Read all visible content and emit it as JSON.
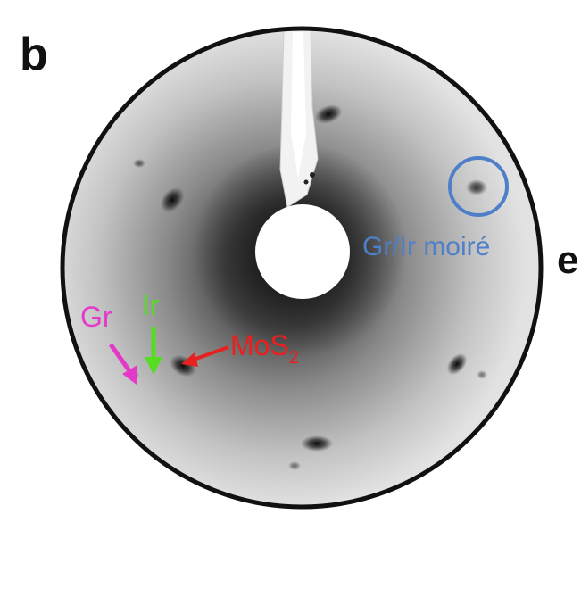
{
  "figure": {
    "panel_label": "b",
    "side_label": "e",
    "pattern": "LEED diffraction pattern",
    "annotations": {
      "moire": {
        "text": "Gr/Ir moiré",
        "color": "#4f7fc9"
      },
      "mos2": {
        "text_main": "MoS",
        "text_sub": "2",
        "color": "#e8201f"
      },
      "ir": {
        "text": "Ir",
        "color": "#55dd22"
      },
      "gr": {
        "text": "Gr",
        "color": "#e53ac9"
      }
    }
  }
}
